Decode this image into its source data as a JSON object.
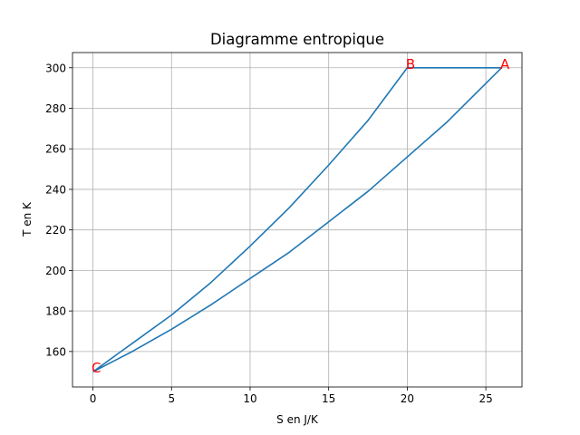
{
  "chart_data": {
    "type": "line",
    "title": "Diagramme entropique",
    "xlabel": "S en J/K",
    "ylabel": "T en K",
    "xlim": [
      -1.3,
      27.3
    ],
    "ylim": [
      142.5,
      307.5
    ],
    "xticks": [
      0,
      5,
      10,
      15,
      20,
      25
    ],
    "yticks": [
      160,
      180,
      200,
      220,
      240,
      260,
      280,
      300
    ],
    "grid": true,
    "line_color": "#1f77b4",
    "label_color": "#ff0000",
    "series": [
      {
        "values_desc": "cycle path C -> B (upper curve), B -> A (isotherm), A -> C (lower curve)",
        "x": [
          0,
          2.5,
          5,
          7.5,
          10,
          12.5,
          15,
          17.5,
          20,
          26,
          22.5,
          20,
          17.5,
          15,
          12.5,
          10,
          7.5,
          5,
          2.5,
          0
        ],
        "y": [
          150,
          164,
          178,
          194,
          212,
          231,
          252,
          274,
          300,
          300,
          273,
          256,
          239,
          224,
          209,
          196,
          183,
          171,
          160,
          150
        ]
      }
    ],
    "annotations": [
      {
        "text": "A",
        "x": 26,
        "y": 300
      },
      {
        "text": "B",
        "x": 20,
        "y": 300
      },
      {
        "text": "C",
        "x": 0,
        "y": 150
      }
    ]
  }
}
